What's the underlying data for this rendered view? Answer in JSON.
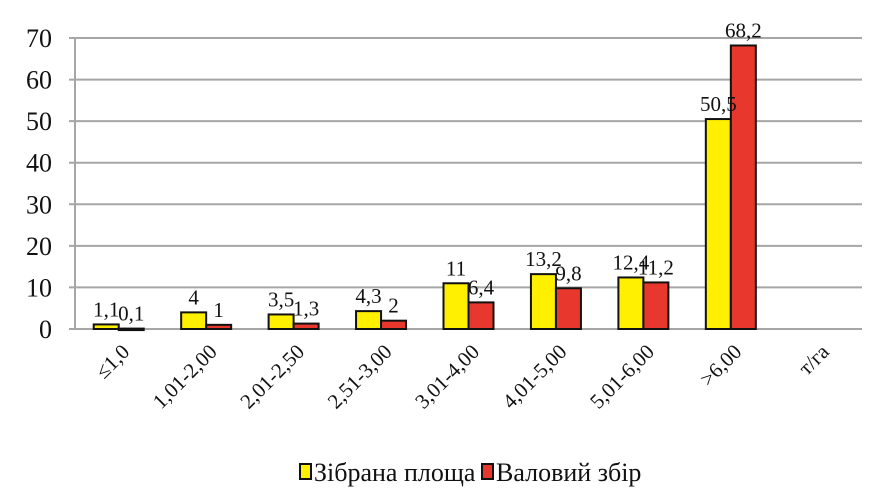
{
  "chart_data": {
    "type": "bar",
    "title": "",
    "xlabel": "",
    "ylabel": "",
    "ylim": [
      0,
      70
    ],
    "yticks": [
      0,
      10,
      20,
      30,
      40,
      50,
      60,
      70
    ],
    "grid": true,
    "legend_position": "bottom",
    "categories": [
      "≤1,0",
      "1,01-2,00",
      "2,01-2,50",
      "2,51-3,00",
      "3,01-4,00",
      "4,01-5,00",
      "5,01-6,00",
      ">6,00",
      "т/га"
    ],
    "series": [
      {
        "name": "Зібрана площа",
        "color": "#ffef00",
        "values": [
          1.1,
          4,
          3.5,
          4.3,
          11,
          13.2,
          12.4,
          50.5,
          null
        ],
        "labels": [
          "1,1",
          "4",
          "3,5",
          "4,3",
          "11",
          "13,2",
          "12,4",
          "50,5",
          ""
        ]
      },
      {
        "name": "Валовий збір",
        "color": "#e8372c",
        "values": [
          0.1,
          1,
          1.3,
          2,
          6.4,
          9.8,
          11.2,
          68.2,
          null
        ],
        "labels": [
          "0,1",
          "1",
          "1,3",
          "2",
          "6,4",
          "9,8",
          "11,2",
          "68,2",
          ""
        ]
      }
    ]
  }
}
